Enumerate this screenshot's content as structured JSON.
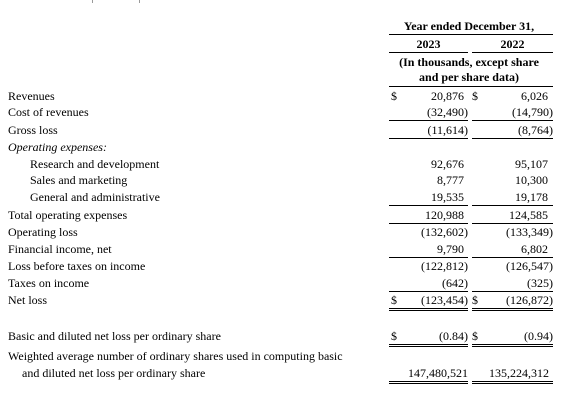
{
  "header": {
    "period": "Year ended December 31,",
    "year1": "2023",
    "year2": "2022",
    "units_line1": "(In thousands, except share",
    "units_line2": "and per share data)"
  },
  "rows": [
    {
      "label": "Revenues",
      "dollar1": "$",
      "v1": "20,876",
      "dollar2": "$",
      "v2": "6,026"
    },
    {
      "label": "Cost of revenues",
      "v1": "(32,490)",
      "v2": "(14,790)"
    },
    {
      "label": "Gross loss",
      "v1": "(11,614)",
      "v2": "(8,764)"
    },
    {
      "label": "Operating expenses:"
    },
    {
      "label": "Research and development",
      "v1": "92,676",
      "v2": "95,107"
    },
    {
      "label": "Sales and marketing",
      "v1": "8,777",
      "v2": "10,300"
    },
    {
      "label": "General and administrative",
      "v1": "19,535",
      "v2": "19,178"
    },
    {
      "label": "Total operating expenses",
      "v1": "120,988",
      "v2": "124,585"
    },
    {
      "label": "Operating loss",
      "v1": "(132,602)",
      "v2": "(133,349)"
    },
    {
      "label": "Financial income, net",
      "v1": "9,790",
      "v2": "6,802"
    },
    {
      "label": "Loss before taxes on income",
      "v1": "(122,812)",
      "v2": "(126,547)"
    },
    {
      "label": "Taxes on income",
      "v1": "(642)",
      "v2": "(325)"
    },
    {
      "label": "Net loss",
      "dollar1": "$",
      "v1": "(123,454)",
      "dollar2": "$",
      "v2": "(126,872)"
    },
    {
      "label": "Basic and diluted net loss per ordinary share",
      "dollar1": "$",
      "v1": "(0.84)",
      "dollar2": "$",
      "v2": "(0.94)"
    },
    {
      "label": "Weighted average number of ordinary shares used in computing basic",
      "label2": "and diluted net loss per ordinary share",
      "v1": "147,480,521",
      "v2": "135,224,312"
    }
  ]
}
